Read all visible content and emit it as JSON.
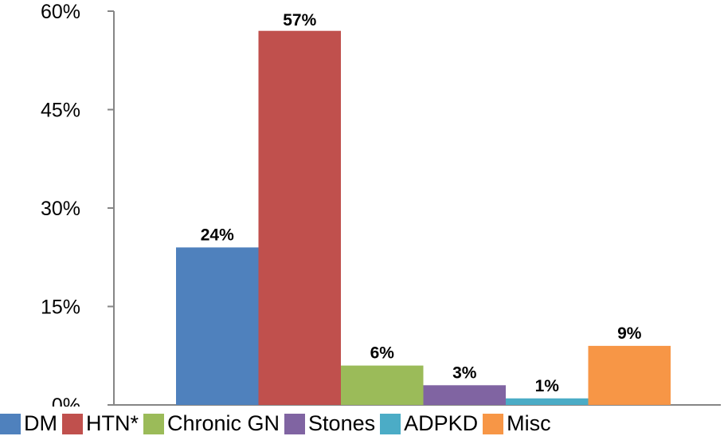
{
  "chart_data": {
    "type": "bar",
    "title": "",
    "xlabel": "",
    "ylabel": "",
    "ylim": [
      0,
      60
    ],
    "y_ticks": [
      "0%",
      "15%",
      "30%",
      "45%",
      "60%"
    ],
    "y_tick_values": [
      0,
      15,
      30,
      45,
      60
    ],
    "grid": false,
    "legend_position": "bottom",
    "series": [
      {
        "name": "DM",
        "value": 24,
        "label": "24%",
        "color": "#4F81BD"
      },
      {
        "name": "HTN*",
        "value": 57,
        "label": "57%",
        "color": "#C0504D"
      },
      {
        "name": "Chronic GN",
        "value": 6,
        "label": "6%",
        "color": "#9BBB59"
      },
      {
        "name": "Stones",
        "value": 3,
        "label": "3%",
        "color": "#8064A2"
      },
      {
        "name": "ADPKD",
        "value": 1,
        "label": "1%",
        "color": "#4BACC6"
      },
      {
        "name": "Misc",
        "value": 9,
        "label": "9%",
        "color": "#F79646"
      }
    ]
  }
}
